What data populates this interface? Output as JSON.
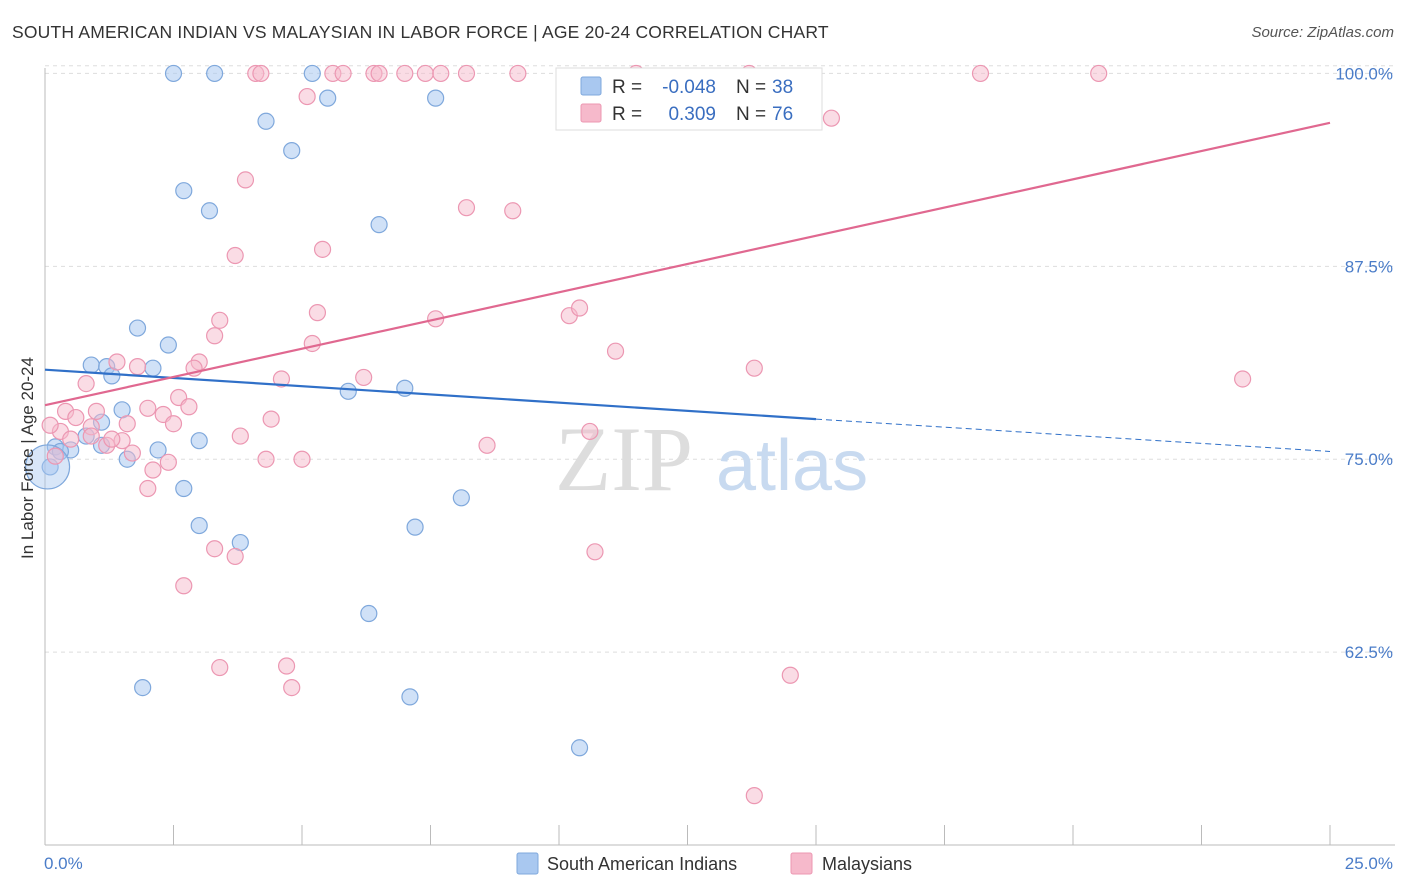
{
  "title": "SOUTH AMERICAN INDIAN VS MALAYSIAN IN LABOR FORCE | AGE 20-24 CORRELATION CHART",
  "source": "Source: ZipAtlas.com",
  "watermark": {
    "zip": "ZIP",
    "atlas": "atlas"
  },
  "colors": {
    "blue_fill": "#a9c8f0",
    "blue_stroke": "#7fa8dc",
    "blue_line": "#3070c8",
    "pink_fill": "#f6b9cb",
    "pink_stroke": "#ec97b2",
    "pink_line": "#e06890",
    "axis_text": "#4a7cc8",
    "grid": "#dddddd"
  },
  "chart_data": {
    "type": "scatter",
    "xlabel": "",
    "ylabel": "In Labor Force | Age 20-24",
    "xlim": [
      0,
      25
    ],
    "ylim": [
      50,
      101
    ],
    "x_tick_labels": [
      "0.0%",
      "25.0%"
    ],
    "y_ticks": [
      62.5,
      75.0,
      87.5,
      100.0
    ],
    "y_tick_labels": [
      "62.5%",
      "75.0%",
      "87.5%",
      "100.0%"
    ],
    "grid": true,
    "legend": {
      "position": "top-center",
      "entries": [
        {
          "r_label": "R =",
          "r_value": "-0.048",
          "n_label": "N =",
          "n_value": "38"
        },
        {
          "r_label": "R =",
          "r_value": "0.309",
          "n_label": "N =",
          "n_value": "76"
        }
      ]
    },
    "series": [
      {
        "name": "South American Indians",
        "trend": {
          "x0": 0,
          "y0": 80.8,
          "x1": 15,
          "y1": 77.6,
          "dash_x1": 25,
          "dash_y1": 75.5
        },
        "points": [
          [
            2.5,
            100
          ],
          [
            3.3,
            100
          ],
          [
            5.2,
            100
          ],
          [
            5.5,
            98.4
          ],
          [
            7.6,
            98.4
          ],
          [
            4.3,
            96.9
          ],
          [
            4.8,
            95.0
          ],
          [
            2.7,
            92.4
          ],
          [
            3.2,
            91.1
          ],
          [
            6.5,
            90.2
          ],
          [
            1.8,
            83.5
          ],
          [
            2.4,
            82.4
          ],
          [
            0.9,
            81.1
          ],
          [
            1.2,
            81.0
          ],
          [
            2.1,
            80.9
          ],
          [
            1.3,
            80.4
          ],
          [
            5.9,
            79.4
          ],
          [
            7.0,
            79.6
          ],
          [
            1.5,
            78.2
          ],
          [
            1.1,
            77.4
          ],
          [
            0.8,
            76.5
          ],
          [
            0.2,
            75.8
          ],
          [
            0.5,
            75.6
          ],
          [
            1.1,
            75.9
          ],
          [
            3.0,
            76.2
          ],
          [
            2.2,
            75.6
          ],
          [
            1.6,
            75.0
          ],
          [
            0.1,
            74.5
          ],
          [
            2.7,
            73.1
          ],
          [
            8.1,
            72.5
          ],
          [
            3.0,
            70.7
          ],
          [
            3.8,
            69.6
          ],
          [
            7.2,
            70.6
          ],
          [
            6.3,
            65.0
          ],
          [
            1.9,
            60.2
          ],
          [
            7.1,
            59.6
          ],
          [
            10.4,
            56.3
          ],
          [
            0.3,
            75.5
          ]
        ]
      },
      {
        "name": "Malaysians",
        "trend": {
          "x0": 0,
          "y0": 78.5,
          "x1": 25,
          "y1": 96.8
        },
        "points": [
          [
            4.1,
            100
          ],
          [
            4.2,
            100
          ],
          [
            5.6,
            100
          ],
          [
            5.8,
            100
          ],
          [
            6.4,
            100
          ],
          [
            6.5,
            100
          ],
          [
            7.0,
            100
          ],
          [
            7.4,
            100
          ],
          [
            7.7,
            100
          ],
          [
            8.2,
            100
          ],
          [
            9.2,
            100
          ],
          [
            11.5,
            100
          ],
          [
            13.7,
            100
          ],
          [
            18.2,
            100
          ],
          [
            20.5,
            100
          ],
          [
            5.1,
            98.5
          ],
          [
            15.3,
            97.1
          ],
          [
            3.9,
            93.1
          ],
          [
            8.2,
            91.3
          ],
          [
            9.1,
            91.1
          ],
          [
            3.7,
            88.2
          ],
          [
            5.4,
            88.6
          ],
          [
            10.2,
            84.3
          ],
          [
            10.4,
            84.8
          ],
          [
            5.3,
            84.5
          ],
          [
            7.6,
            84.1
          ],
          [
            3.4,
            84.0
          ],
          [
            3.3,
            83.0
          ],
          [
            5.2,
            82.5
          ],
          [
            11.1,
            82.0
          ],
          [
            3.0,
            81.3
          ],
          [
            1.4,
            81.3
          ],
          [
            1.8,
            81.0
          ],
          [
            2.9,
            80.9
          ],
          [
            13.8,
            80.9
          ],
          [
            23.3,
            80.2
          ],
          [
            0.8,
            79.9
          ],
          [
            4.6,
            80.2
          ],
          [
            6.2,
            80.3
          ],
          [
            2.6,
            79.0
          ],
          [
            2.8,
            78.4
          ],
          [
            2.0,
            78.3
          ],
          [
            0.4,
            78.1
          ],
          [
            1.0,
            78.1
          ],
          [
            2.3,
            77.9
          ],
          [
            4.4,
            77.6
          ],
          [
            0.6,
            77.7
          ],
          [
            1.6,
            77.3
          ],
          [
            2.5,
            77.3
          ],
          [
            0.9,
            77.1
          ],
          [
            0.3,
            76.8
          ],
          [
            3.8,
            76.5
          ],
          [
            0.9,
            76.5
          ],
          [
            0.5,
            76.3
          ],
          [
            1.5,
            76.2
          ],
          [
            1.2,
            75.9
          ],
          [
            8.6,
            75.9
          ],
          [
            10.6,
            76.8
          ],
          [
            4.3,
            75.0
          ],
          [
            5.0,
            75.0
          ],
          [
            1.7,
            75.4
          ],
          [
            2.4,
            74.8
          ],
          [
            2.1,
            74.3
          ],
          [
            2.0,
            73.1
          ],
          [
            3.3,
            69.2
          ],
          [
            3.7,
            68.7
          ],
          [
            10.7,
            69.0
          ],
          [
            2.7,
            66.8
          ],
          [
            3.4,
            61.5
          ],
          [
            4.7,
            61.6
          ],
          [
            4.8,
            60.2
          ],
          [
            14.5,
            61.0
          ],
          [
            13.8,
            53.2
          ],
          [
            0.1,
            77.2
          ],
          [
            1.3,
            76.3
          ],
          [
            0.2,
            75.2
          ]
        ]
      }
    ]
  }
}
